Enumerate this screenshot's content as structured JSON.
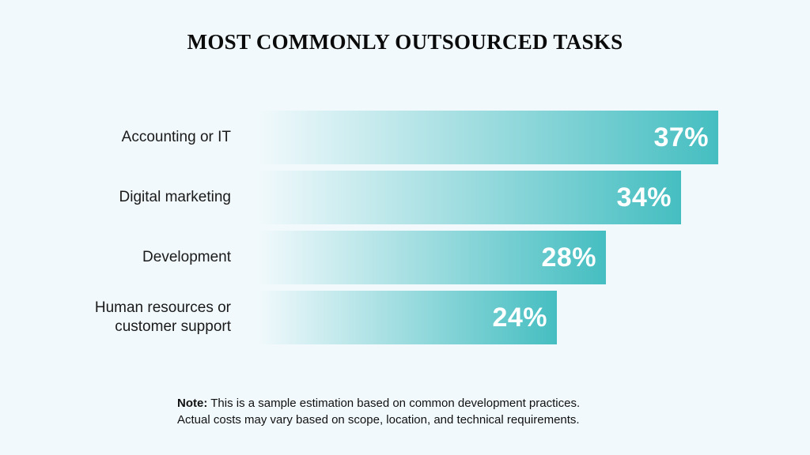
{
  "chart_data": {
    "type": "bar",
    "orientation": "horizontal",
    "title": "MOST COMMONLY OUTSOURCED TASKS",
    "categories": [
      "Accounting or IT",
      "Digital marketing",
      "Development",
      "Human resources or\ncustomer support"
    ],
    "values": [
      37,
      34,
      28,
      24
    ],
    "value_labels": [
      "37%",
      "34%",
      "28%",
      "24%"
    ],
    "unit": "%",
    "xlim": [
      0,
      37
    ],
    "grid": false,
    "bar_color": "#45bec1"
  },
  "note": {
    "label": "Note:",
    "line1": "This is a sample estimation based on common development practices.",
    "line2": "Actual costs may vary based on scope, location, and technical requirements."
  }
}
